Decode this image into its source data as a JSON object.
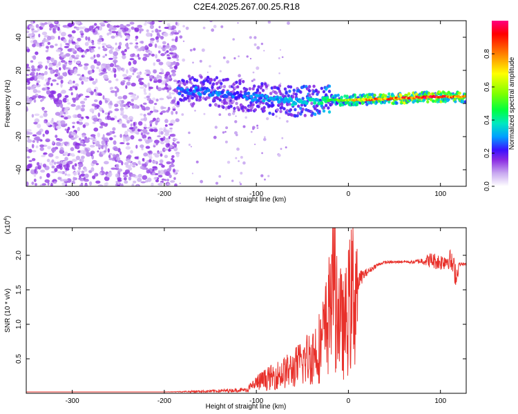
{
  "figure_title": "C2E4.2025.267.00.25.R18",
  "chart_data": [
    {
      "type": "heatmap",
      "title": "C2E4.2025.267.00.25.R18",
      "xlabel": "Height of straight line (km)",
      "ylabel": "Frequency (Hz)",
      "xlim": [
        -350,
        128
      ],
      "ylim": [
        -50,
        50
      ],
      "xticks": [
        -300,
        -200,
        -100,
        0,
        100
      ],
      "xtick_labels": [
        "-300",
        "-200",
        "-100",
        "0",
        "100"
      ],
      "yticks": [
        -40,
        -20,
        0,
        20,
        40
      ],
      "ytick_labels": [
        "-40",
        "-20",
        "0",
        "20",
        "40"
      ],
      "colorbar": {
        "label": "Normalized spectral amplitude",
        "range": [
          0,
          1
        ],
        "ticks": [
          0.0,
          0.2,
          0.4,
          0.6,
          0.8
        ],
        "tick_labels": [
          "0.0",
          "0.2",
          "0.4",
          "0.6",
          "0.8"
        ],
        "colormap": [
          "#ffffff",
          "#c8a8f0",
          "#8a2be2",
          "#3a10ff",
          "#00a0ff",
          "#00e8c0",
          "#00ff40",
          "#80ff00",
          "#ffff00",
          "#ff8000",
          "#ff0000",
          "#ff0080"
        ]
      },
      "regions": {
        "noise": {
          "x_range": [
            -350,
            -185
          ],
          "freq_range": [
            -50,
            50
          ],
          "amplitude": 0.15
        },
        "signal_trace": [
          {
            "x": -185,
            "freq": 8,
            "amplitude": 0.3
          },
          {
            "x": -150,
            "freq": 7,
            "amplitude": 0.35
          },
          {
            "x": -120,
            "freq": 5,
            "amplitude": 0.3
          },
          {
            "x": -90,
            "freq": 3,
            "amplitude": 0.35
          },
          {
            "x": -60,
            "freq": 1,
            "amplitude": 0.4
          },
          {
            "x": -30,
            "freq": 2,
            "amplitude": 0.45
          },
          {
            "x": 0,
            "freq": 2,
            "amplitude": 0.7
          },
          {
            "x": 50,
            "freq": 3,
            "amplitude": 0.85
          },
          {
            "x": 90,
            "freq": 4,
            "amplitude": 0.9
          },
          {
            "x": 128,
            "freq": 4,
            "amplitude": 0.8
          }
        ]
      }
    },
    {
      "type": "line",
      "xlabel": "Height of straight line (km)",
      "ylabel": "SNR (10 * v/v)",
      "y_multiplier": "(x10^4)",
      "y_multiplier_base": "(x10",
      "y_multiplier_exp": "4",
      "y_multiplier_close": ")",
      "xlim": [
        -350,
        128
      ],
      "ylim": [
        0,
        2.4
      ],
      "xticks": [
        -300,
        -200,
        -100,
        0,
        100
      ],
      "xtick_labels": [
        "-300",
        "-200",
        "-100",
        "0",
        "100"
      ],
      "yticks": [
        0.5,
        1.0,
        1.5,
        2.0
      ],
      "ytick_labels": [
        "0.5",
        "1.0",
        "1.5",
        "2.0"
      ],
      "color": "#e8302a",
      "series": [
        {
          "name": "SNR",
          "x": [
            -350,
            -300,
            -250,
            -200,
            -150,
            -110,
            -100,
            -90,
            -80,
            -70,
            -60,
            -50,
            -40,
            -30,
            -25,
            -20,
            -17,
            -15,
            -12,
            -10,
            -5,
            0,
            5,
            10,
            15,
            20,
            25,
            30,
            35,
            40,
            50,
            60,
            70,
            80,
            90,
            100,
            110,
            118,
            120,
            128
          ],
          "y": [
            0.02,
            0.02,
            0.02,
            0.02,
            0.03,
            0.05,
            0.15,
            0.2,
            0.25,
            0.3,
            0.35,
            0.45,
            0.55,
            0.7,
            0.9,
            1.2,
            2.4,
            1.6,
            1.3,
            1.1,
            0.9,
            1.2,
            1.45,
            1.6,
            1.7,
            1.75,
            1.8,
            1.85,
            1.88,
            1.9,
            1.9,
            1.91,
            1.9,
            1.92,
            1.93,
            1.9,
            1.95,
            1.7,
            1.87,
            1.87
          ],
          "spread": [
            0,
            0,
            0,
            0,
            0.02,
            0.03,
            0.12,
            0.15,
            0.18,
            0.2,
            0.25,
            0.3,
            0.4,
            0.45,
            0.5,
            0.55,
            0.3,
            0.5,
            0.45,
            0.4,
            0.35,
            0.3,
            0.2,
            0.15,
            0.1,
            0.05,
            0.04,
            0.03,
            0.02,
            0.02,
            0.02,
            0.02,
            0.02,
            0.05,
            0.12,
            0.12,
            0.15,
            0.2,
            0.03,
            0.02
          ]
        }
      ]
    }
  ]
}
